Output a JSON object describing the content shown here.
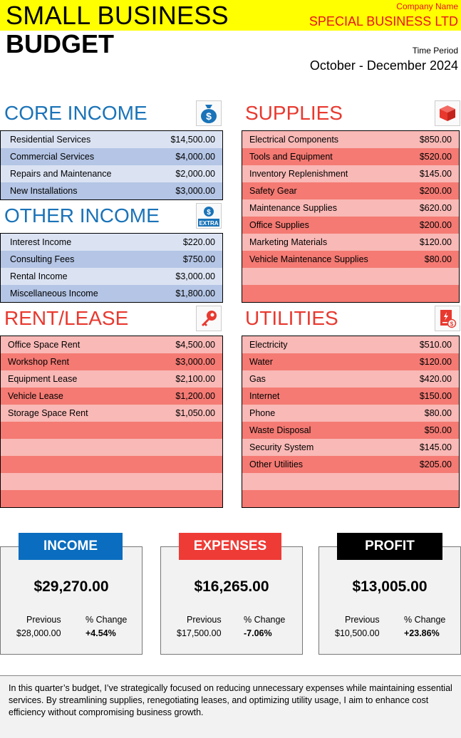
{
  "header": {
    "title_line1": "SMALL BUSINESS",
    "title_line2": "BUDGET",
    "company_label": "Company Name",
    "company_name": "SPECIAL BUSINESS LTD",
    "period_label": "Time Period",
    "period_value": "October - December 2024"
  },
  "colors": {
    "highlight": "#ffff00",
    "blue": "#1a73b8",
    "red": "#e8392f",
    "income": "#0a6dbf",
    "expenses": "#ef3b36",
    "profit": "#000000"
  },
  "core_income": {
    "title": "CORE INCOME",
    "icon": "money-bag-dollar-icon",
    "rows": [
      {
        "label": "Residential Services",
        "value": "$14,500.00"
      },
      {
        "label": "Commercial Services",
        "value": "$4,000.00"
      },
      {
        "label": "Repairs and Maintenance",
        "value": "$2,000.00"
      },
      {
        "label": "New Installations",
        "value": "$3,000.00"
      }
    ]
  },
  "other_income": {
    "title": "OTHER INCOME",
    "icon": "extra-dollar-icon",
    "icon_text": "EXTRA",
    "rows": [
      {
        "label": "Interest Income",
        "value": "$220.00"
      },
      {
        "label": "Consulting Fees",
        "value": "$750.00"
      },
      {
        "label": "Rental Income",
        "value": "$3,000.00"
      },
      {
        "label": "Miscellaneous Income",
        "value": "$1,800.00"
      }
    ]
  },
  "supplies": {
    "title": "SUPPLIES",
    "icon": "package-box-icon",
    "rows": [
      {
        "label": "Electrical Components",
        "value": "$850.00"
      },
      {
        "label": "Tools and Equipment",
        "value": "$520.00"
      },
      {
        "label": "Inventory Replenishment",
        "value": "$145.00"
      },
      {
        "label": "Safety Gear",
        "value": "$200.00"
      },
      {
        "label": "Maintenance Supplies",
        "value": "$620.00"
      },
      {
        "label": "Office Supplies",
        "value": "$200.00"
      },
      {
        "label": "Marketing Materials",
        "value": "$120.00"
      },
      {
        "label": "Vehicle Maintenance Supplies",
        "value": "$80.00"
      },
      {
        "label": "",
        "value": ""
      },
      {
        "label": "",
        "value": ""
      }
    ]
  },
  "rent_lease": {
    "title": "RENT/LEASE",
    "icon": "key-icon",
    "rows": [
      {
        "label": "Office Space Rent",
        "value": "$4,500.00"
      },
      {
        "label": "Workshop Rent",
        "value": "$3,000.00"
      },
      {
        "label": "Equipment Lease",
        "value": "$2,100.00"
      },
      {
        "label": "Vehicle Lease",
        "value": "$1,200.00"
      },
      {
        "label": "Storage Space Rent",
        "value": "$1,050.00"
      },
      {
        "label": "",
        "value": ""
      },
      {
        "label": "",
        "value": ""
      },
      {
        "label": "",
        "value": ""
      },
      {
        "label": "",
        "value": ""
      },
      {
        "label": "",
        "value": ""
      }
    ]
  },
  "utilities": {
    "title": "UTILITIES",
    "icon": "utility-bill-icon",
    "rows": [
      {
        "label": "Electricity",
        "value": "$510.00"
      },
      {
        "label": "Water",
        "value": "$120.00"
      },
      {
        "label": "Gas",
        "value": "$420.00"
      },
      {
        "label": "Internet",
        "value": "$150.00"
      },
      {
        "label": "Phone",
        "value": "$80.00"
      },
      {
        "label": "Waste Disposal",
        "value": "$50.00"
      },
      {
        "label": "Security System",
        "value": "$145.00"
      },
      {
        "label": "Other Utilities",
        "value": "$205.00"
      },
      {
        "label": "",
        "value": ""
      },
      {
        "label": "",
        "value": ""
      }
    ]
  },
  "summary": {
    "income": {
      "title": "INCOME",
      "total": "$29,270.00",
      "previous_label": "Previous",
      "previous": "$28,000.00",
      "change_label": "% Change",
      "change": "+4.54%"
    },
    "expenses": {
      "title": "EXPENSES",
      "total": "$16,265.00",
      "previous_label": "Previous",
      "previous": "$17,500.00",
      "change_label": "% Change",
      "change": "-7.06%"
    },
    "profit": {
      "title": "PROFIT",
      "total": "$13,005.00",
      "previous_label": "Previous",
      "previous": "$10,500.00",
      "change_label": "% Change",
      "change": "+23.86%"
    }
  },
  "note": "In this quarter’s budget, I’ve strategically focused on reducing unnecessary expenses while maintaining essential services. By streamlining supplies, renegotiating leases, and optimizing utility usage, I aim to enhance cost efficiency without compromising business growth."
}
